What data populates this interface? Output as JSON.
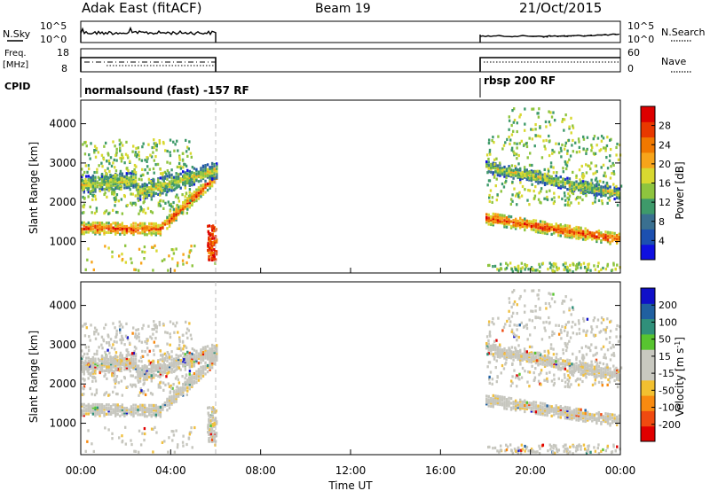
{
  "header": {
    "title": "Adak East (fitACF)",
    "beam": "Beam 19",
    "date": "21/Oct/2015"
  },
  "top_strip": {
    "nsky_label": "N.Sky",
    "nsearch_label": "N.Search",
    "count_ticks_left": [
      "10^5",
      "10^0"
    ],
    "count_ticks_right": [
      "10^5",
      "10^0"
    ],
    "freq_label": "Freq.",
    "freq_unit": "[MHz]",
    "freq_ticks": [
      "18",
      "8"
    ],
    "nave_label": "Nave",
    "nave_ticks": [
      "60",
      "0"
    ],
    "cpid_label": "CPID",
    "cpid_segments": [
      "normalsound (fast) -157 RF",
      "rbsp 200 RF"
    ]
  },
  "colors": {
    "power_scale": [
      "#1010e0",
      "#1c50b0",
      "#3a7090",
      "#3e9a6a",
      "#8ec43e",
      "#d8d830",
      "#f7a41a",
      "#f07800",
      "#e83800",
      "#dd0000"
    ],
    "velocity_scale": [
      "#e00000",
      "#f04a10",
      "#f88a10",
      "#f2c030",
      "#c8c8c0",
      "#c8c8c0",
      "#58c430",
      "#30907a",
      "#2060a0",
      "#1010c8"
    ],
    "gray_scatter": "#c6c6be"
  },
  "chart_data": [
    {
      "type": "heatmap",
      "name": "power",
      "ylabel": "Slant Range [km]",
      "ylim": [
        200,
        4600
      ],
      "yticks": [
        1000,
        2000,
        3000,
        4000
      ],
      "colorbar_label": "Power [dB]",
      "colorbar_ticks": [
        "28",
        "24",
        "20",
        "16",
        "12",
        "8",
        "4"
      ],
      "x_range_hours": [
        0,
        24
      ],
      "data_gap_hours": [
        6,
        18
      ],
      "bands": [
        {
          "t": [
            0.0,
            6.0
          ],
          "r_start": 1350,
          "r_end": 1300,
          "width": 300,
          "level": 8
        },
        {
          "t": [
            0.0,
            6.0
          ],
          "r_start": 2450,
          "r_end": 2700,
          "width": 400,
          "level": 5
        },
        {
          "t": [
            18.0,
            24.0
          ],
          "r_start": 1600,
          "r_end": 1050,
          "width": 300,
          "level": 8
        },
        {
          "t": [
            18.0,
            24.0
          ],
          "r_start": 2900,
          "r_end": 2200,
          "width": 300,
          "level": 5
        }
      ]
    },
    {
      "type": "heatmap",
      "name": "velocity",
      "ylabel": "Slant Range [km]",
      "ylim": [
        200,
        4600
      ],
      "yticks": [
        1000,
        2000,
        3000,
        4000
      ],
      "colorbar_label": "Velocity [m s^-1]",
      "colorbar_ticks": [
        "200",
        "100",
        "50",
        "15",
        "-15",
        "-50",
        "-100",
        "-200"
      ],
      "x_range_hours": [
        0,
        24
      ],
      "xticks": [
        "00:00",
        "04:00",
        "08:00",
        "12:00",
        "16:00",
        "20:00",
        "00:00"
      ],
      "xlabel": "Time UT",
      "data_gap_hours": [
        6,
        18
      ]
    }
  ]
}
